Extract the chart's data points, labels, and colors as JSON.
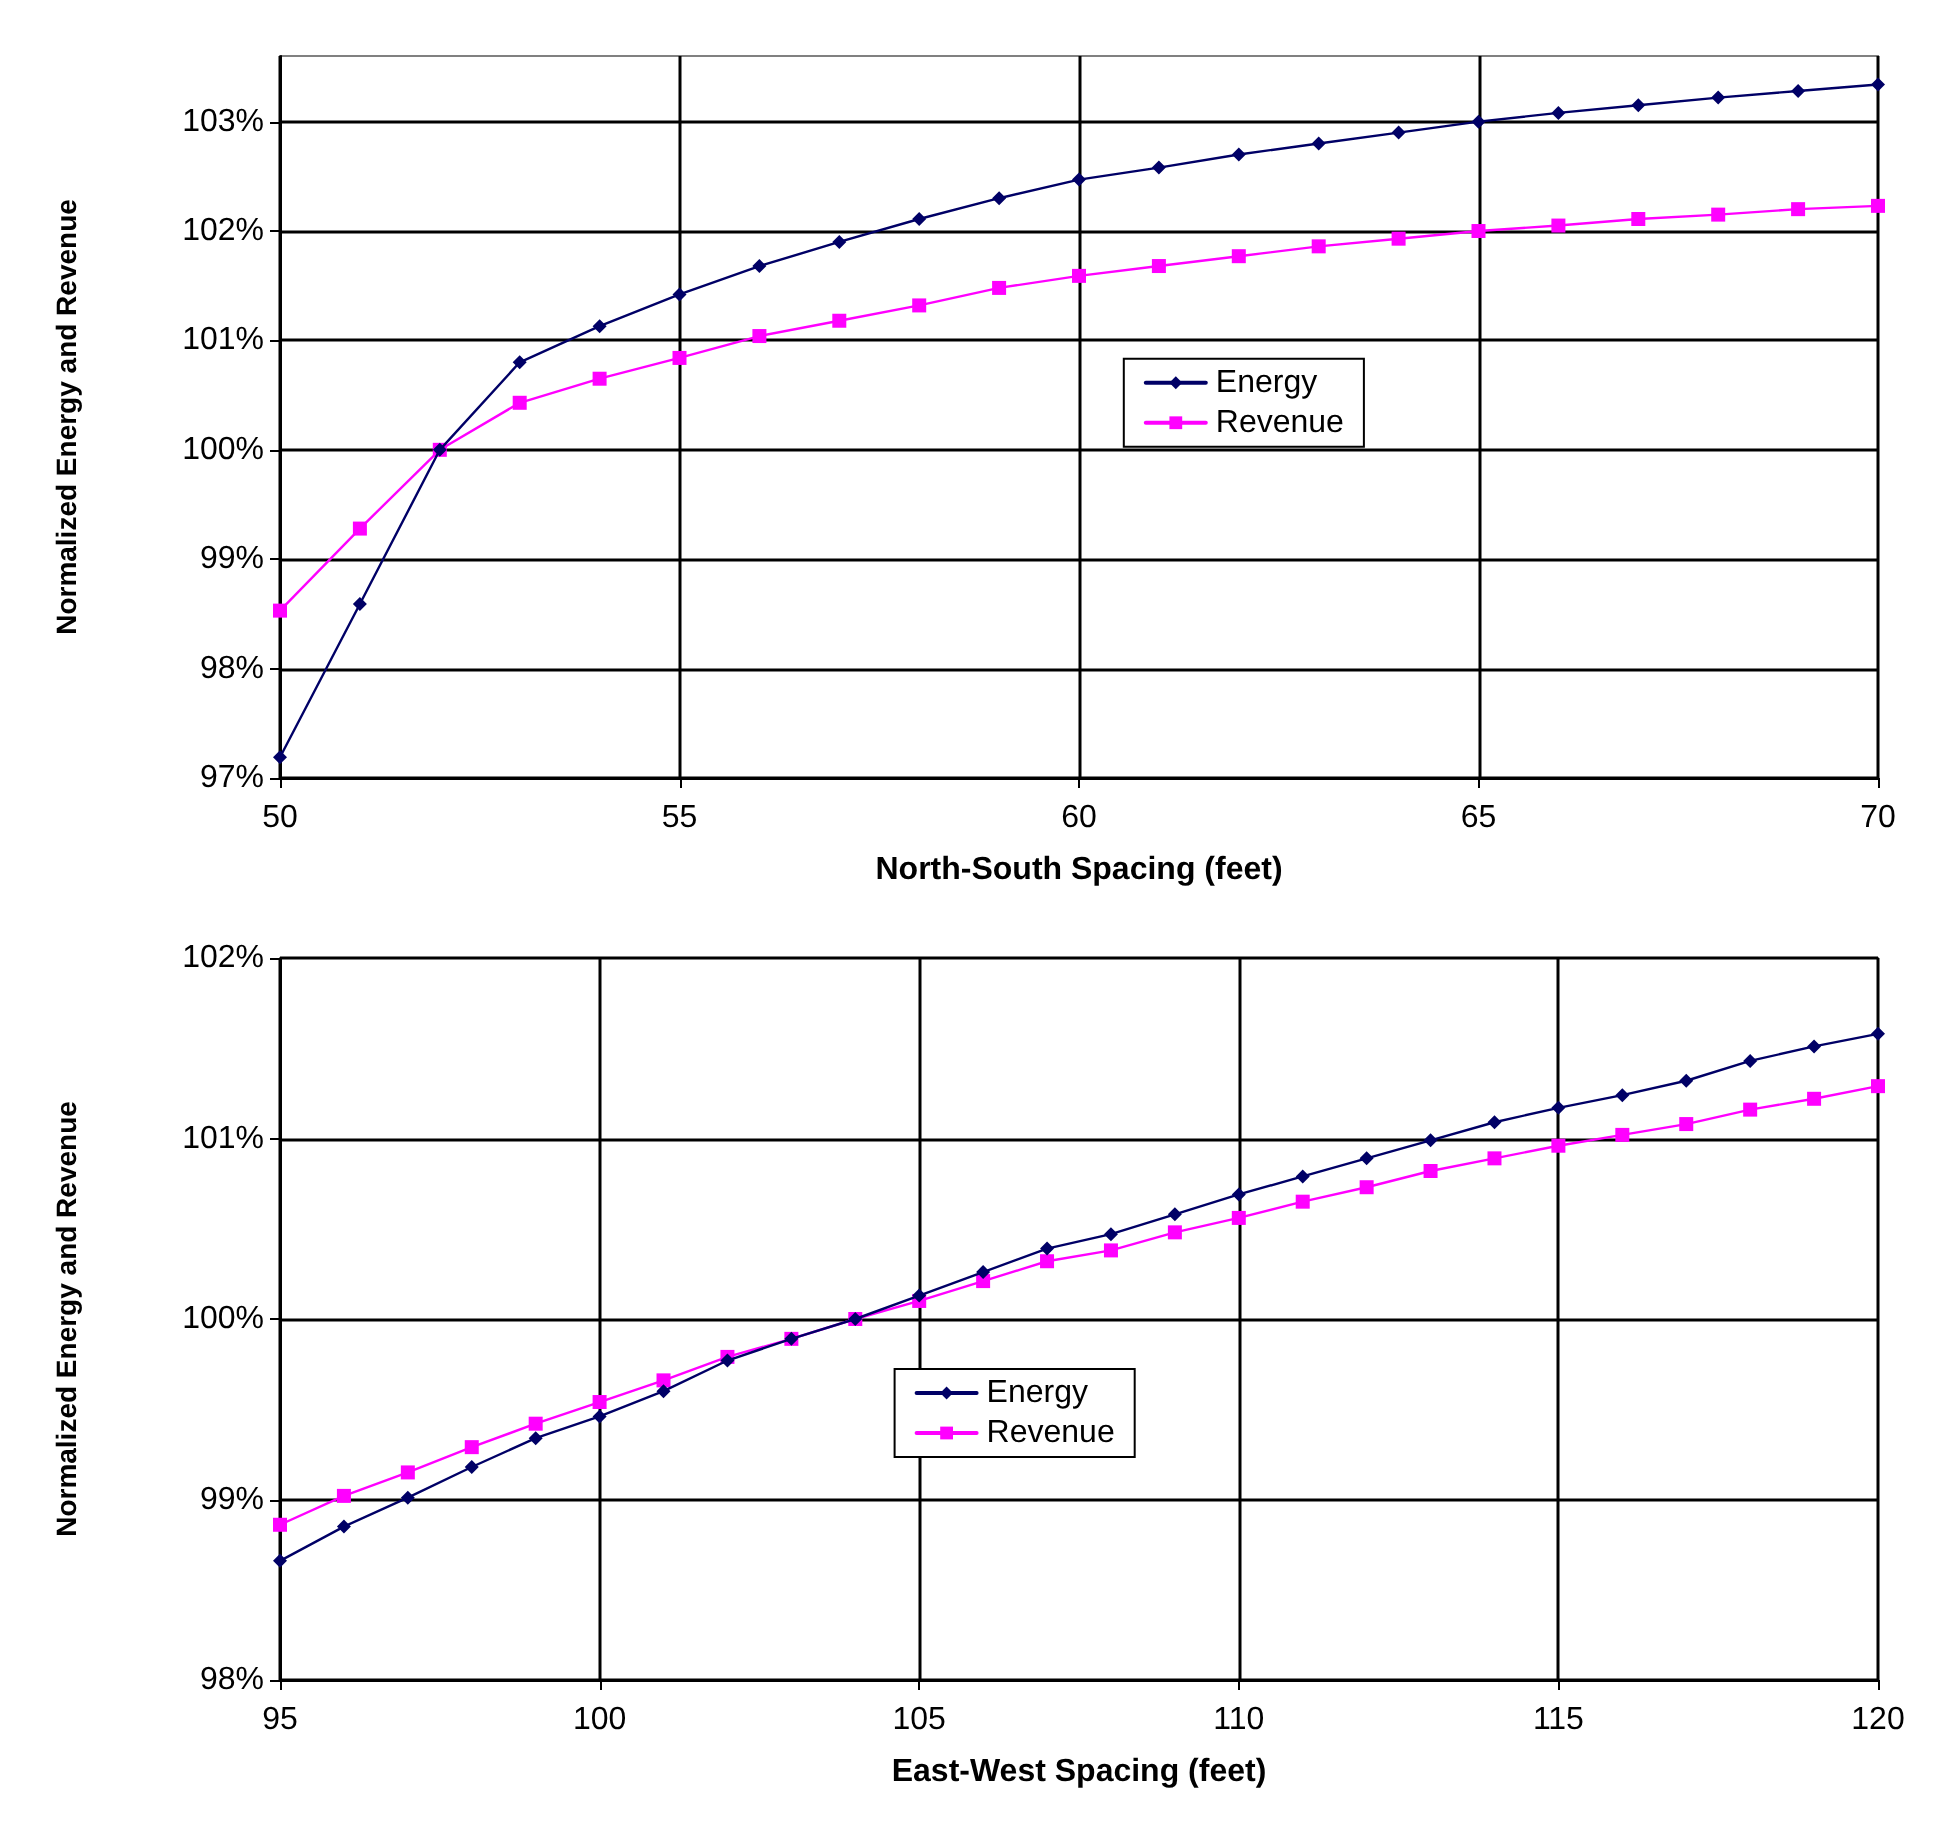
{
  "chart_data": [
    {
      "type": "line",
      "xlabel": "North-South Spacing (feet)",
      "ylabel": "Normalized Energy and Revenue",
      "x": [
        50,
        51,
        52,
        53,
        54,
        55,
        56,
        57,
        58,
        59,
        60,
        61,
        62,
        63,
        64,
        65,
        66,
        67,
        68,
        69,
        70
      ],
      "series": [
        {
          "name": "Energy",
          "color": "#000066",
          "marker": "diamond",
          "values": [
            97.19,
            98.59,
            100,
            100.8,
            101.13,
            101.42,
            101.68,
            101.9,
            102.11,
            102.3,
            102.47,
            102.58,
            102.7,
            102.8,
            102.9,
            103.0,
            103.08,
            103.15,
            103.22,
            103.28,
            103.34
          ]
        },
        {
          "name": "Revenue",
          "color": "#ff00ff",
          "marker": "square",
          "values": [
            98.53,
            99.28,
            100,
            100.43,
            100.65,
            100.84,
            101.04,
            101.18,
            101.32,
            101.48,
            101.59,
            101.68,
            101.77,
            101.86,
            101.93,
            102.0,
            102.05,
            102.11,
            102.15,
            102.2,
            102.23
          ]
        }
      ],
      "xlim": [
        50,
        70
      ],
      "xticks": [
        50,
        55,
        60,
        65,
        70
      ],
      "ylim": [
        97,
        103.6
      ],
      "yticks": [
        {
          "value": 97,
          "label": "97%"
        },
        {
          "value": 98,
          "label": "98%"
        },
        {
          "value": 99,
          "label": "99%"
        },
        {
          "value": 100,
          "label": "100%"
        },
        {
          "value": 101,
          "label": "101%"
        },
        {
          "value": 102,
          "label": "102%"
        },
        {
          "value": 103,
          "label": "103%"
        }
      ],
      "grid": true,
      "legend": "right",
      "line_style": "solid"
    },
    {
      "type": "line",
      "xlabel": "East-West Spacing (feet)",
      "ylabel": "Normalized Energy and Revenue",
      "x": [
        95,
        96,
        97,
        98,
        99,
        100,
        101,
        102,
        103,
        104,
        105,
        106,
        107,
        108,
        109,
        110,
        111,
        112,
        113,
        114,
        115,
        116,
        117,
        118,
        119,
        120
      ],
      "series": [
        {
          "name": "Energy",
          "color": "#000066",
          "marker": "diamond",
          "values": [
            98.66,
            98.85,
            99.01,
            99.18,
            99.34,
            99.46,
            99.6,
            99.77,
            99.89,
            100,
            100.13,
            100.26,
            100.39,
            100.47,
            100.58,
            100.69,
            100.79,
            100.89,
            100.99,
            101.09,
            101.17,
            101.24,
            101.32,
            101.43,
            101.51,
            101.58
          ]
        },
        {
          "name": "Revenue",
          "color": "#ff00ff",
          "marker": "square",
          "values": [
            98.86,
            99.02,
            99.15,
            99.29,
            99.42,
            99.54,
            99.66,
            99.79,
            99.89,
            100,
            100.1,
            100.21,
            100.32,
            100.38,
            100.48,
            100.56,
            100.65,
            100.73,
            100.82,
            100.89,
            100.96,
            101.02,
            101.08,
            101.16,
            101.22,
            101.29
          ]
        }
      ],
      "xlim": [
        95,
        120
      ],
      "xticks": [
        95,
        100,
        105,
        110,
        115,
        120
      ],
      "ylim": [
        98,
        102
      ],
      "yticks": [
        {
          "value": 98,
          "label": "98%"
        },
        {
          "value": 99,
          "label": "99%"
        },
        {
          "value": 100,
          "label": "100%"
        },
        {
          "value": 101,
          "label": "101%"
        },
        {
          "value": 102,
          "label": "102%"
        }
      ],
      "grid": true,
      "legend": "center",
      "line_style": "solid"
    }
  ]
}
